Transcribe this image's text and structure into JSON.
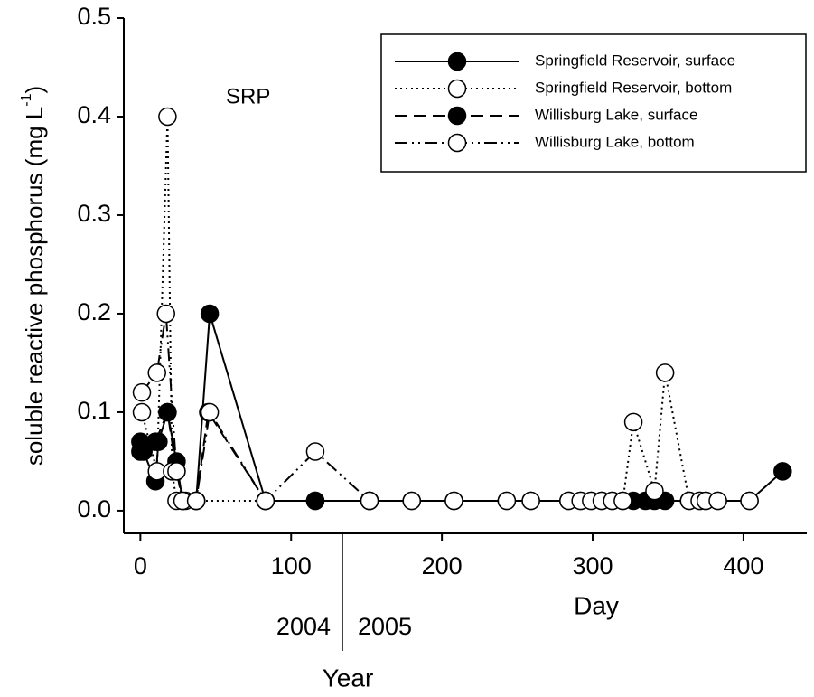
{
  "chart_data": {
    "type": "line",
    "title": "SRP",
    "xlabel": "Day",
    "ylabel": "soluble reactive phosphorus (mg L",
    "ylabel_sup": "-1",
    "ylabel_end": ")",
    "year_axis": {
      "label": "Year",
      "before": "2004",
      "after": "2005",
      "boundary": 134
    },
    "xlim": [
      -11,
      442
    ],
    "ylim": [
      -0.023,
      0.5
    ],
    "xticks": [
      0,
      100,
      200,
      300,
      400
    ],
    "yticks": [
      {
        "value": 0,
        "label": "0.0"
      },
      0.1,
      0.2,
      0.3,
      0.4,
      0.5
    ],
    "legend": "upper right",
    "series": [
      {
        "name": "Springfield Reservoir, surface",
        "color": "#000000",
        "marker_fill": "#000000",
        "style": "solid",
        "x": [
          0,
          2,
          10,
          12,
          18,
          24,
          28,
          37,
          46,
          83,
          116,
          152,
          180,
          208,
          243,
          259,
          284,
          292,
          299,
          306,
          313,
          320,
          327,
          335,
          341,
          348,
          364,
          371,
          375,
          383,
          404,
          426
        ],
        "values": [
          0.07,
          0.06,
          0.03,
          0.07,
          0.1,
          0.05,
          0.01,
          0.01,
          0.2,
          0.01,
          0.01,
          0.01,
          0.01,
          0.01,
          0.01,
          0.01,
          0.01,
          0.01,
          0.01,
          0.01,
          0.01,
          0.01,
          0.01,
          0.01,
          0.01,
          0.01,
          0.01,
          0.01,
          0.01,
          0.01,
          0.01,
          0.04
        ]
      },
      {
        "name": "Springfield Reservoir, bottom",
        "color": "#000000",
        "marker_fill": "#ffffff",
        "style": "dotted",
        "x": [
          1,
          11,
          18,
          21,
          24,
          30,
          37,
          83,
          152,
          180,
          208,
          243,
          259,
          284,
          292,
          299,
          306,
          313,
          320,
          327,
          341,
          348,
          364,
          371,
          375,
          383,
          404
        ],
        "values": [
          0.1,
          0.04,
          0.4,
          0.04,
          0.01,
          0.01,
          0.01,
          0.01,
          0.01,
          0.01,
          0.01,
          0.01,
          0.01,
          0.01,
          0.01,
          0.01,
          0.01,
          0.01,
          0.01,
          0.09,
          0.02,
          0.14,
          0.01,
          0.01,
          0.01,
          0.01,
          0.01
        ]
      },
      {
        "name": "Willisburg Lake, surface",
        "color": "#000000",
        "marker_fill": "#000000",
        "style": "dashed",
        "x": [
          0,
          10,
          18,
          24,
          28,
          37,
          45,
          83,
          116,
          152
        ],
        "values": [
          0.06,
          0.07,
          0.1,
          0.04,
          0.01,
          0.01,
          0.1,
          0.01,
          0.01,
          0.01
        ]
      },
      {
        "name": "Willisburg Lake, bottom",
        "color": "#000000",
        "marker_fill": "#ffffff",
        "style": "dash-dot-dot",
        "x": [
          1,
          11,
          17,
          24,
          28,
          37,
          46,
          83,
          116,
          152
        ],
        "values": [
          0.12,
          0.14,
          0.2,
          0.04,
          0.01,
          0.01,
          0.1,
          0.01,
          0.06,
          0.01
        ]
      }
    ]
  }
}
